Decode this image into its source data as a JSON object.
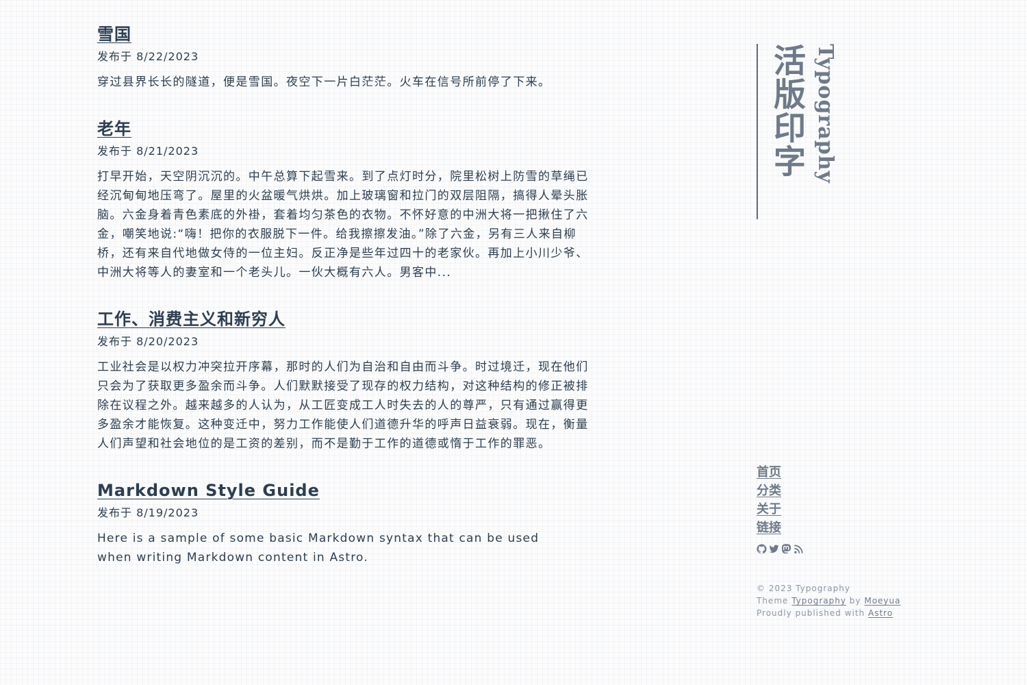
{
  "posts": [
    {
      "title": "雪国",
      "date": "发布于 8/22/2023",
      "excerpt": "穿过县界长长的隧道，便是雪国。夜空下一片白茫茫。火车在信号所前停了下来。"
    },
    {
      "title": "老年",
      "date": "发布于 8/21/2023",
      "excerpt": "打早开始，天空阴沉沉的。中午总算下起雪来。到了点灯时分，院里松树上防雪的草绳已经沉甸甸地压弯了。屋里的火盆暖气烘烘。加上玻璃窗和拉门的双层阻隔，搞得人晕头胀脑。六金身着青色素底的外褂，套着均匀茶色的衣物。不怀好意的中洲大将一把揪住了六金，嘲笑地说:“嗨！把你的衣服脱下一件。给我擦擦发油。”除了六金，另有三人来自柳桥，还有来自代地做女侍的一位主妇。反正净是些年过四十的老家伙。再加上小川少爷、中洲大将等人的妻室和一个老头儿。一伙大概有六人。男客中..."
    },
    {
      "title": "工作、消费主义和新穷人",
      "date": "发布于 8/20/2023",
      "excerpt": "工业社会是以权力冲突拉开序幕，那时的人们为自治和自由而斗争。时过境迁，现在他们只会为了获取更多盈余而斗争。人们默默接受了现存的权力结构，对这种结构的修正被排除在议程之外。越来越多的人认为，从工匠变成工人时失去的人的尊严，只有通过赢得更多盈余才能恢复。这种变迁中，努力工作能使人们道德升华的呼声日益衰弱。现在，衡量人们声望和社会地位的是工资的差别，而不是勤于工作的道德或惰于工作的罪恶。"
    },
    {
      "title": "Markdown Style Guide",
      "date": "发布于 8/19/2023",
      "excerpt": "Here is a sample of some basic Markdown syntax that can be used when writing Markdown content in Astro."
    }
  ],
  "sidebar": {
    "brand_cn": "活版印字",
    "brand_en": "Typography",
    "nav": [
      "首页",
      "分类",
      "关于",
      "链接"
    ],
    "social_icons": [
      "github-icon",
      "twitter-icon",
      "mastodon-icon",
      "rss-icon"
    ]
  },
  "footer": {
    "copyright": "© 2023 Typography",
    "theme_prefix": "Theme",
    "theme_link": "Typography",
    "by": "by",
    "author_link": "Moeyua",
    "published_prefix": "Proudly published with",
    "astro_link": "Astro"
  },
  "colors": {
    "text": "#2c3e50",
    "muted": "#6e7a8a",
    "footer": "#8a96a5"
  }
}
